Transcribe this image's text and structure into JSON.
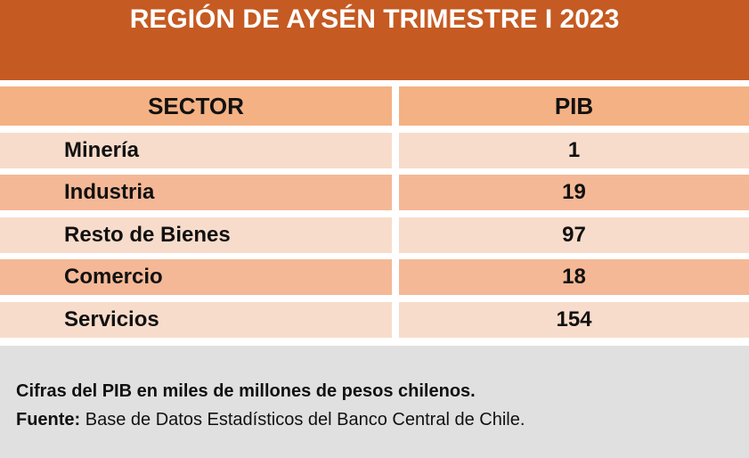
{
  "header": {
    "title": "REGIÓN DE AYSÉN TRIMESTRE I 2023"
  },
  "table": {
    "columns": [
      "SECTOR",
      "PIB"
    ],
    "rows": [
      [
        "Minería",
        "1"
      ],
      [
        "Industria",
        "19"
      ],
      [
        "Resto de Bienes",
        "97"
      ],
      [
        "Comercio",
        "18"
      ],
      [
        "Servicios",
        "154"
      ]
    ]
  },
  "footer": {
    "note": "Cifras del PIB en miles de millones de pesos chilenos.",
    "source_label": "Fuente:",
    "source_text": "Base de Datos Estadísticos del Banco Central de Chile."
  }
}
